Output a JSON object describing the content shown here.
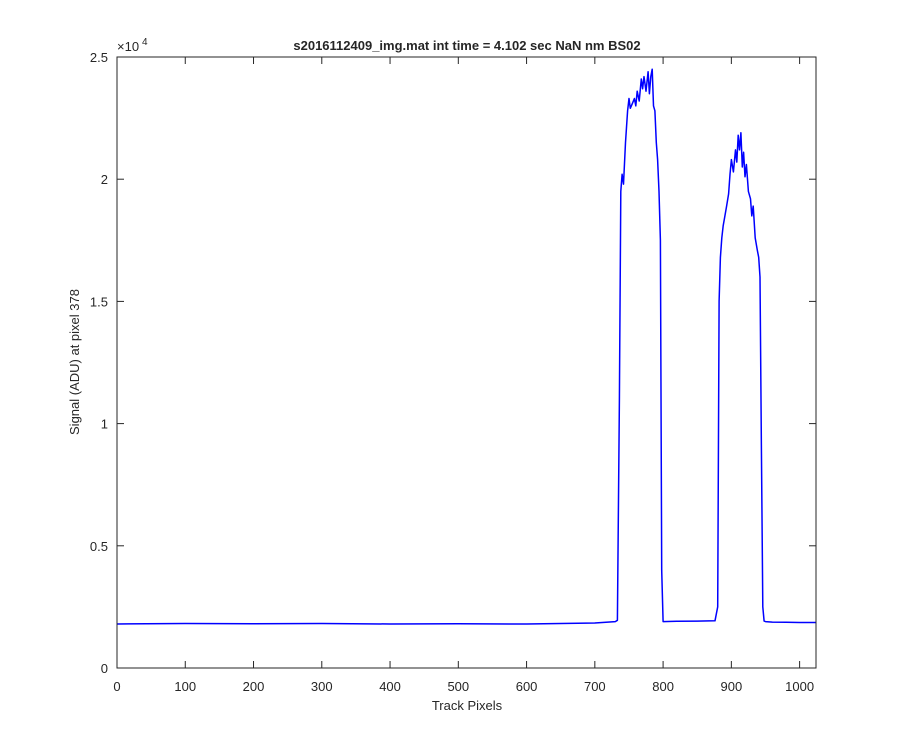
{
  "chart_data": {
    "type": "line",
    "title": "s2016112409_img.mat int time = 4.102 sec  NaN nm BS02",
    "xlabel": "Track Pixels",
    "ylabel": "Signal (ADU) at pixel 378",
    "exponent_label": "×10",
    "exponent_power": "4",
    "xlim": [
      0,
      1024
    ],
    "ylim": [
      0,
      25000
    ],
    "x_ticks": [
      0,
      100,
      200,
      300,
      400,
      500,
      600,
      700,
      800,
      900,
      1000
    ],
    "x_tick_labels": [
      "0",
      "100",
      "200",
      "300",
      "400",
      "500",
      "600",
      "700",
      "800",
      "900",
      "1000"
    ],
    "y_ticks": [
      0,
      5000,
      10000,
      15000,
      20000,
      25000
    ],
    "y_tick_labels": [
      "0",
      "0.5",
      "1",
      "1.5",
      "2",
      "2.5"
    ],
    "grid": false,
    "legend": "none",
    "series": [
      {
        "color": "#0000ff",
        "x": [
          0,
          100,
          200,
          300,
          400,
          500,
          600,
          700,
          730,
          733,
          736,
          738,
          740,
          742,
          745,
          748,
          750,
          752,
          755,
          758,
          760,
          762,
          765,
          768,
          770,
          772,
          775,
          778,
          780,
          782,
          784,
          786,
          788,
          790,
          792,
          794,
          796,
          798,
          800,
          820,
          850,
          876,
          880,
          882,
          884,
          886,
          888,
          890,
          893,
          896,
          898,
          900,
          903,
          906,
          908,
          910,
          912,
          914,
          916,
          918,
          920,
          922,
          925,
          928,
          930,
          932,
          935,
          938,
          940,
          942,
          944,
          946,
          948,
          950,
          960,
          980,
          1000,
          1024
        ],
        "y": [
          1800,
          1820,
          1810,
          1820,
          1800,
          1810,
          1800,
          1840,
          1900,
          1950,
          11000,
          19500,
          20200,
          19800,
          21500,
          22800,
          23300,
          22900,
          23100,
          23300,
          23000,
          23600,
          23200,
          24100,
          23700,
          24200,
          23600,
          24400,
          23500,
          24200,
          24500,
          23000,
          22800,
          21500,
          20800,
          19500,
          17500,
          4000,
          1900,
          1910,
          1920,
          1930,
          2500,
          15000,
          16800,
          17600,
          18100,
          18400,
          18900,
          19400,
          20200,
          20800,
          20300,
          21200,
          20700,
          21800,
          21200,
          21900,
          20500,
          21100,
          20100,
          20600,
          19500,
          19200,
          18500,
          18900,
          17600,
          17100,
          16800,
          16000,
          9000,
          2500,
          1920,
          1900,
          1880,
          1870,
          1860,
          1860
        ]
      }
    ]
  }
}
